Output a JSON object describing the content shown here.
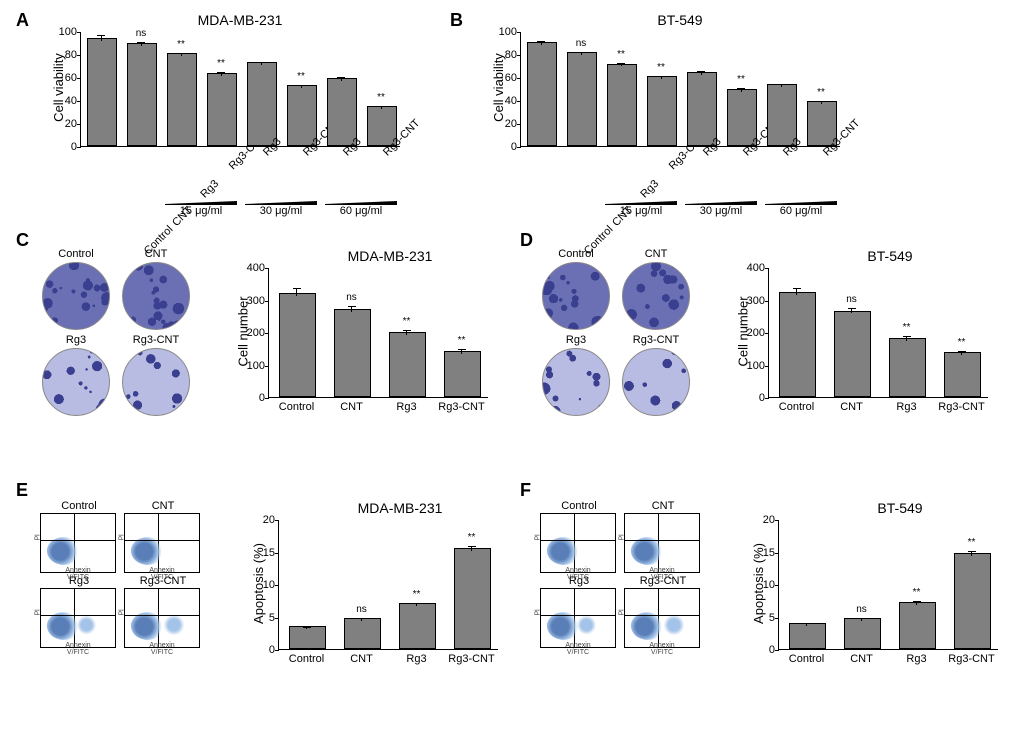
{
  "panels": [
    "A",
    "B",
    "C",
    "D",
    "E",
    "F"
  ],
  "colors": {
    "bar_fill": "#808080",
    "bar_border": "#000000",
    "axis": "#000000",
    "background": "#ffffff",
    "well_border": "#888888",
    "stain_dark": "#3a3f8f",
    "stain_mid": "#6b70b5",
    "stain_light": "#b8bce2",
    "flow_cloud_main": "#5a7fb8",
    "flow_cloud_edge": "#a3c3e8"
  },
  "A": {
    "title": "MDA-MB-231",
    "type": "bar",
    "ylabel": "Cell viability",
    "ylim": [
      0,
      100
    ],
    "ytick_step": 20,
    "categories": [
      "Control",
      "CNT",
      "Rg3",
      "Rg3-CNT",
      "Rg3",
      "Rg3-CNT",
      "Rg3",
      "Rg3-CNT"
    ],
    "values": [
      92,
      88,
      79,
      62,
      71,
      51,
      57,
      33
    ],
    "err": [
      5,
      3,
      3,
      3,
      3,
      3,
      4,
      3
    ],
    "sig": [
      "",
      "ns",
      "**",
      "**",
      "",
      "**",
      "",
      "**"
    ],
    "doses": [
      {
        "label": "15 μg/ml",
        "from": 2,
        "to": 3
      },
      {
        "label": "30 μg/ml",
        "from": 4,
        "to": 5
      },
      {
        "label": "60 μg/ml",
        "from": 6,
        "to": 7
      }
    ],
    "bar_width": 0.7,
    "label_fontsize": 11,
    "title_fontsize": 14
  },
  "B": {
    "title": "BT-549",
    "type": "bar",
    "ylabel": "Cell viability",
    "ylim": [
      0,
      100
    ],
    "ytick_step": 20,
    "categories": [
      "Control",
      "CNT",
      "Rg3",
      "Rg3-CNT",
      "Rg3",
      "Rg3-CNT",
      "Rg3",
      "Rg3-CNT"
    ],
    "values": [
      89,
      80,
      70,
      59,
      63,
      48,
      52,
      37
    ],
    "err": [
      3,
      3,
      3,
      3,
      3,
      3,
      3,
      3
    ],
    "sig": [
      "",
      "ns",
      "**",
      "**",
      "",
      "**",
      "",
      "**"
    ],
    "doses": [
      {
        "label": "15 μg/ml",
        "from": 2,
        "to": 3
      },
      {
        "label": "30 μg/ml",
        "from": 4,
        "to": 5
      },
      {
        "label": "60 μg/ml",
        "from": 6,
        "to": 7
      }
    ],
    "bar_width": 0.7
  },
  "C": {
    "title": "MDA-MB-231",
    "images": [
      "Control",
      "CNT",
      "Rg3",
      "Rg3-CNT"
    ],
    "densities": [
      0.85,
      0.75,
      0.45,
      0.25
    ],
    "chart": {
      "type": "bar",
      "ylabel": "Cell number",
      "ylim": [
        0,
        400
      ],
      "ytick_step": 100,
      "categories": [
        "Control",
        "CNT",
        "Rg3",
        "Rg3-CNT"
      ],
      "values": [
        315,
        265,
        195,
        135
      ],
      "err": [
        22,
        18,
        15,
        15
      ],
      "sig": [
        "",
        "ns",
        "**",
        "**"
      ],
      "bar_width": 0.65
    }
  },
  "D": {
    "title": "BT-549",
    "images": [
      "Control",
      "CNT",
      "Rg3",
      "Rg3-CNT"
    ],
    "densities": [
      0.82,
      0.7,
      0.4,
      0.22
    ],
    "chart": {
      "type": "bar",
      "ylabel": "Cell number",
      "ylim": [
        0,
        400
      ],
      "ytick_step": 100,
      "categories": [
        "Control",
        "CNT",
        "Rg3",
        "Rg3-CNT"
      ],
      "values": [
        318,
        260,
        175,
        132
      ],
      "err": [
        20,
        18,
        15,
        14
      ],
      "sig": [
        "",
        "ns",
        "**",
        "**"
      ],
      "bar_width": 0.65
    }
  },
  "E": {
    "title": "MDA-MB-231",
    "images": [
      "Control",
      "CNT",
      "Rg3",
      "Rg3-CNT"
    ],
    "flow_axis_x": "Annexin V/FITC",
    "flow_axis_y": "PI",
    "chart": {
      "type": "bar",
      "ylabel": "Apoptosis (%)",
      "ylim": [
        0,
        20
      ],
      "ytick_step": 5,
      "categories": [
        "Control",
        "CNT",
        "Rg3",
        "Rg3-CNT"
      ],
      "values": [
        3.2,
        4.5,
        6.7,
        15.2
      ],
      "err": [
        0.4,
        0.5,
        0.5,
        0.8
      ],
      "sig": [
        "",
        "ns",
        "**",
        "**"
      ],
      "bar_width": 0.65
    }
  },
  "F": {
    "title": "BT-549",
    "images": [
      "Control",
      "CNT",
      "Rg3",
      "Rg3-CNT"
    ],
    "flow_axis_x": "Annexin V/FITC",
    "flow_axis_y": "PI",
    "chart": {
      "type": "bar",
      "ylabel": "Apoptosis (%)",
      "ylim": [
        0,
        20
      ],
      "ytick_step": 5,
      "categories": [
        "Control",
        "CNT",
        "Rg3",
        "Rg3-CNT"
      ],
      "values": [
        3.7,
        4.5,
        7.0,
        14.5
      ],
      "err": [
        0.5,
        0.5,
        0.5,
        0.8
      ],
      "sig": [
        "",
        "ns",
        "**",
        "**"
      ],
      "bar_width": 0.65
    }
  }
}
